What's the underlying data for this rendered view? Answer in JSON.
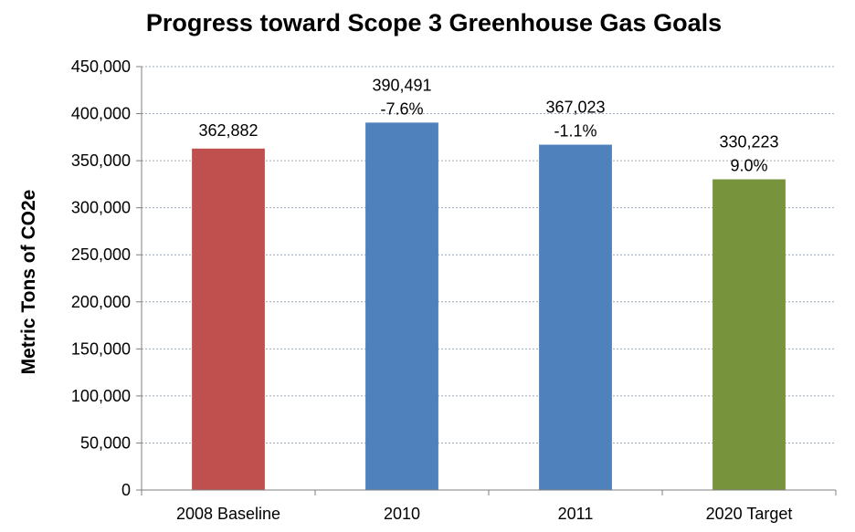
{
  "chart_data": {
    "type": "bar",
    "title": "Progress toward Scope 3 Greenhouse Gas Goals",
    "xlabel": "",
    "ylabel": "Metric Tons of CO2e",
    "ylim": [
      0,
      450000
    ],
    "yticks": [
      "0",
      "50,000",
      "100,000",
      "150,000",
      "200,000",
      "250,000",
      "300,000",
      "350,000",
      "400,000",
      "450,000"
    ],
    "grid": true,
    "categories": [
      "2008 Baseline",
      "2010",
      "2011",
      "2020 Target"
    ],
    "values": [
      362882,
      390491,
      367023,
      330223
    ],
    "value_labels": [
      "362,882",
      "390,491",
      "367,023",
      "330,223"
    ],
    "change_labels": [
      "",
      "-7.6%",
      "-1.1%",
      "9.0%"
    ],
    "colors": [
      "#c0504d",
      "#4f81bd",
      "#4f81bd",
      "#77933c"
    ]
  }
}
